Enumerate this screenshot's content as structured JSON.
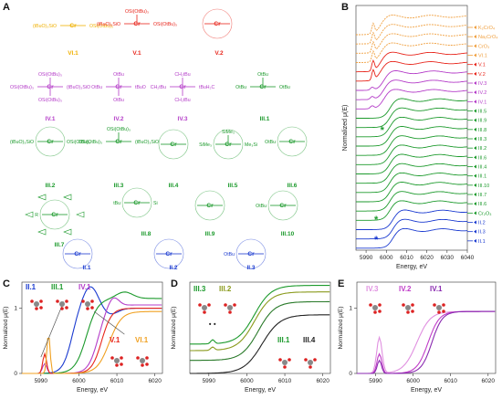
{
  "panels": {
    "A": "A",
    "B": "B",
    "C": "C",
    "D": "D",
    "E": "E"
  },
  "structures": [
    {
      "id": "VI.1",
      "color": "#f0b000",
      "formula": [
        "(tBuO)₃SiO",
        "Cr",
        "OSi(OtBu)₃"
      ]
    },
    {
      "id": "V.1",
      "color": "#e8261c",
      "formula": [
        "(tBuO)₃SiO",
        "Cr",
        "OSi(OtBu)₃",
        "OSi(OtBu)₃"
      ]
    },
    {
      "id": "V.2",
      "color": "#e8261c",
      "formula": [
        "Cr"
      ]
    },
    {
      "id": "IV.1",
      "color": "#b43cc8",
      "formula": [
        "OSi(OtBu)₃",
        "(tBuO)₃SiO",
        "Cr",
        "OSi(OtBu)₃",
        "OSi(OtBu)₃"
      ]
    },
    {
      "id": "IV.2",
      "color": "#b43cc8",
      "formula": [
        "OtBu",
        "tBuO",
        "Cr",
        "OtBu",
        "OtBu"
      ]
    },
    {
      "id": "IV.3",
      "color": "#b43cc8",
      "formula": [
        "CH₂tBu",
        "tBuH₂C",
        "Cr",
        "CH₂tBu",
        "CH₂tBu"
      ]
    },
    {
      "id": "III.1",
      "color": "#1c9a2c",
      "formula": [
        "OtBu",
        "OtBu",
        "Cr",
        "OtBu"
      ]
    },
    {
      "id": "III.2",
      "color": "#1c9a2c",
      "formula": [
        "(tBuO)₃SiO",
        "Cr",
        "OSi(OtBu)₃"
      ]
    },
    {
      "id": "III.3",
      "color": "#1c9a2c",
      "formula": [
        "OSi(OtBu)₃",
        "(tBuO)₃SiO",
        "Cr",
        "OSi(OtBu)₃"
      ]
    },
    {
      "id": "III.4",
      "color": "#1c9a2c",
      "formula": [
        "Cr"
      ]
    },
    {
      "id": "III.5",
      "color": "#1c9a2c",
      "formula": [
        "SiMe₃",
        "Me₃Si",
        "Cr",
        "SiMe₃"
      ]
    },
    {
      "id": "III.6",
      "color": "#1c9a2c",
      "formula": [
        "Cr",
        "OtBu"
      ]
    },
    {
      "id": "III.7",
      "color": "#1c9a2c",
      "formula": [
        "Cr",
        "R"
      ]
    },
    {
      "id": "III.8",
      "color": "#1c9a2c",
      "formula": [
        "tBu",
        "Cr",
        "Si"
      ]
    },
    {
      "id": "III.9",
      "color": "#1c9a2c",
      "formula": [
        "Cr"
      ]
    },
    {
      "id": "III.10",
      "color": "#1c9a2c",
      "formula": [
        "Cr",
        "OtBu"
      ]
    },
    {
      "id": "II.1",
      "color": "#1a3ad0",
      "formula": [
        "Cr"
      ]
    },
    {
      "id": "II.2",
      "color": "#1a3ad0",
      "formula": [
        "Cr"
      ]
    },
    {
      "id": "II.3",
      "color": "#1a3ad0",
      "formula": [
        "Cr",
        "OtBu"
      ]
    }
  ],
  "panel_B": {
    "ylabel": "Normalized μ(E)",
    "xlabel": "Energy, eV",
    "xticks": [
      "5990",
      "6000",
      "6010",
      "6020",
      "6030",
      "6040"
    ],
    "star": "*",
    "legend": [
      {
        "label": "K₂CrO₄",
        "color": "#f0a040"
      },
      {
        "label": "Na₂CrO₄",
        "color": "#f0a040"
      },
      {
        "label": "CrO₃",
        "color": "#f0a040"
      },
      {
        "label": "VI.1",
        "color": "#f0a040"
      },
      {
        "label": "V.1",
        "color": "#e8261c"
      },
      {
        "label": "V.2",
        "color": "#e8261c"
      },
      {
        "label": "IV.3",
        "color": "#b43cc8"
      },
      {
        "label": "IV.2",
        "color": "#b43cc8"
      },
      {
        "label": "IV.1",
        "color": "#b43cc8"
      },
      {
        "label": "III.5",
        "color": "#1c9a2c"
      },
      {
        "label": "III.9",
        "color": "#1c9a2c"
      },
      {
        "label": "III.8",
        "color": "#1c9a2c"
      },
      {
        "label": "III.3",
        "color": "#1c9a2c"
      },
      {
        "label": "III.2",
        "color": "#1c9a2c"
      },
      {
        "label": "III.6",
        "color": "#1c9a2c"
      },
      {
        "label": "III.4",
        "color": "#1c9a2c"
      },
      {
        "label": "III.1",
        "color": "#1c9a2c"
      },
      {
        "label": "III.10",
        "color": "#1c9a2c"
      },
      {
        "label": "III.7",
        "color": "#1c9a2c"
      },
      {
        "label": "III.6",
        "color": "#1c9a2c"
      },
      {
        "label": "Cr₂O₃",
        "color": "#1c9a2c"
      },
      {
        "label": "II.2",
        "color": "#1a3ad0"
      },
      {
        "label": "II.3",
        "color": "#1a3ad0"
      },
      {
        "label": "II.1",
        "color": "#1a3ad0"
      }
    ]
  },
  "panel_C": {
    "ylabel": "Normalized μ(E)",
    "xlabel": "Energy, eV",
    "xticks": [
      "5990",
      "6000",
      "6010",
      "6020"
    ],
    "yticks": [
      "0",
      "1"
    ],
    "labels": [
      {
        "text": "II.1",
        "color": "#1a3ad0"
      },
      {
        "text": "III.1",
        "color": "#1c9a2c"
      },
      {
        "text": "IV.1",
        "color": "#b43cc8"
      },
      {
        "text": "V.1",
        "color": "#e8261c"
      },
      {
        "text": "VI.1",
        "color": "#f0a020"
      }
    ]
  },
  "panel_D": {
    "ylabel": "Normalized μ(E)",
    "xlabel": "Energy, eV",
    "xticks": [
      "5990",
      "6000",
      "6010",
      "6020"
    ],
    "labels": [
      {
        "text": "III.3",
        "color": "#1c9a2c"
      },
      {
        "text": "III.2",
        "color": "#8a9a1c"
      },
      {
        "text": "III.1",
        "color": "#1c9a2c"
      },
      {
        "text": "III.4",
        "color": "#222222"
      }
    ],
    "dots": "• •"
  },
  "panel_E": {
    "ylabel": "Normalized μ(E)",
    "xlabel": "Energy, eV",
    "xticks": [
      "5990",
      "6000",
      "6010",
      "6020"
    ],
    "yticks": [
      "0",
      "1"
    ],
    "labels": [
      {
        "text": "IV.3",
        "color": "#e090e0"
      },
      {
        "text": "IV.2",
        "color": "#c03cc8"
      },
      {
        "text": "IV.1",
        "color": "#8a2ab0"
      }
    ]
  },
  "chart_data": [
    {
      "type": "line",
      "xlabel": "Energy, eV",
      "ylabel": "Normalized μ(E)",
      "xlim": [
        5985,
        6040
      ],
      "series_note": "stacked XANES spectra, panel B"
    },
    {
      "type": "line",
      "xlabel": "Energy, eV",
      "ylabel": "Normalized μ(E)",
      "xlim": [
        5985,
        6022
      ],
      "ylim": [
        0,
        1.4
      ],
      "series": [
        {
          "name": "II.1"
        },
        {
          "name": "III.1"
        },
        {
          "name": "IV.1"
        },
        {
          "name": "V.1"
        },
        {
          "name": "VI.1"
        }
      ]
    },
    {
      "type": "line",
      "xlabel": "Energy, eV",
      "ylabel": "Normalized μ(E)",
      "xlim": [
        5985,
        6022
      ],
      "series": [
        {
          "name": "III.3"
        },
        {
          "name": "III.2"
        },
        {
          "name": "III.1"
        },
        {
          "name": "III.4"
        }
      ]
    },
    {
      "type": "line",
      "xlabel": "Energy, eV",
      "ylabel": "Normalized μ(E)",
      "xlim": [
        5985,
        6022
      ],
      "ylim": [
        0,
        1.4
      ],
      "series": [
        {
          "name": "IV.3"
        },
        {
          "name": "IV.2"
        },
        {
          "name": "IV.1"
        }
      ]
    }
  ]
}
